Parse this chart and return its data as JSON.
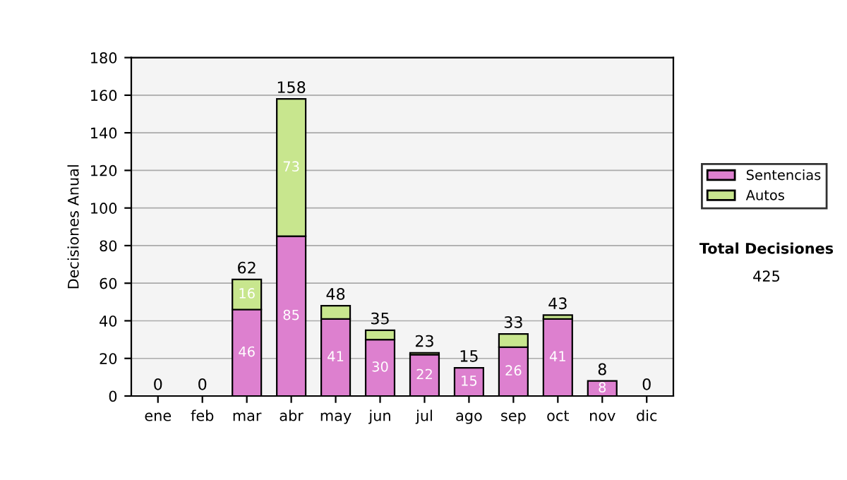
{
  "chart_data": {
    "type": "bar",
    "stacked": true,
    "ylabel": "Decisiones Anual",
    "categories": [
      "ene",
      "feb",
      "mar",
      "abr",
      "may",
      "jun",
      "jul",
      "ago",
      "sep",
      "oct",
      "nov",
      "dic"
    ],
    "series": [
      {
        "name": "Sentencias",
        "color": "#dd80cf",
        "values": [
          0,
          0,
          46,
          85,
          41,
          30,
          22,
          15,
          26,
          41,
          8,
          0
        ],
        "value_labels": [
          null,
          null,
          "46",
          "85",
          "41",
          "30",
          "22",
          "15",
          "26",
          "41",
          "8",
          null
        ]
      },
      {
        "name": "Autos",
        "color": "#c8e68e",
        "values": [
          0,
          0,
          16,
          73,
          7,
          5,
          1,
          0,
          7,
          2,
          0,
          0
        ],
        "value_labels": [
          null,
          null,
          "16",
          "73",
          null,
          null,
          null,
          null,
          null,
          null,
          null,
          null
        ]
      }
    ],
    "totals": [
      "0",
      "0",
      "62",
      "158",
      "48",
      "35",
      "23",
      "15",
      "33",
      "43",
      "8",
      "0"
    ],
    "ylim": [
      0,
      180
    ],
    "yticks": [
      0,
      20,
      40,
      60,
      80,
      100,
      120,
      140,
      160,
      180
    ],
    "grid": "y",
    "legend": "right",
    "annotations": [
      "Total Decisiones",
      "425"
    ]
  }
}
